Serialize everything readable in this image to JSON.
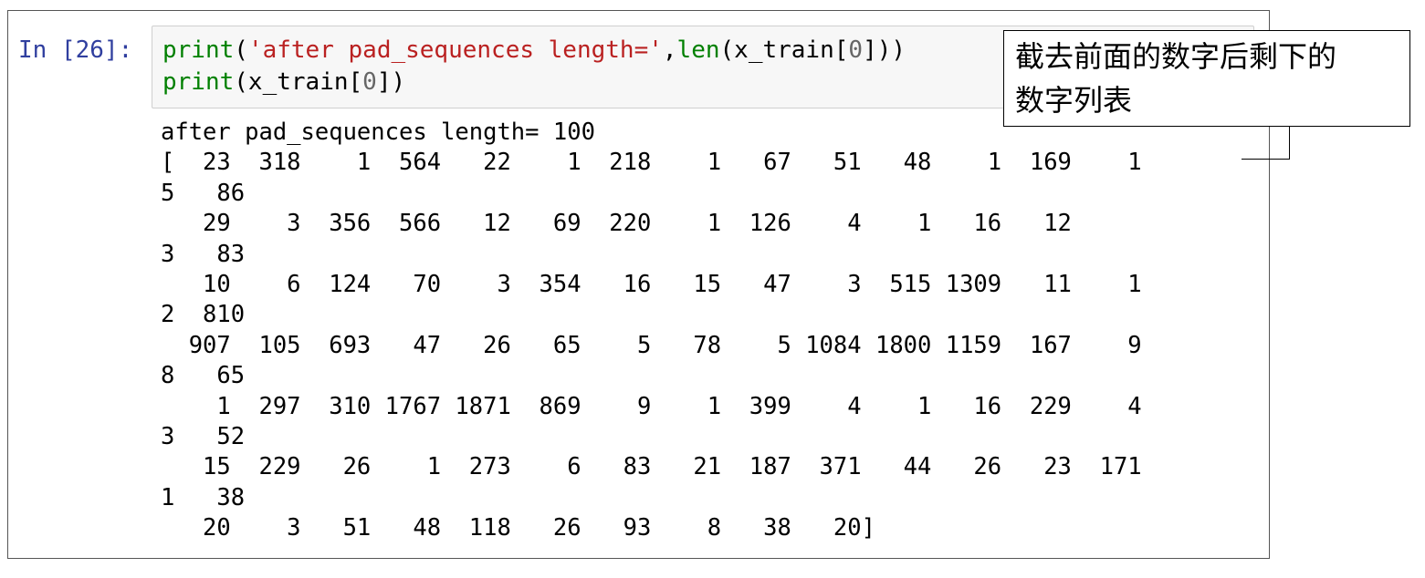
{
  "cell": {
    "prompt": "In [26]:",
    "code_lines": [
      {
        "parts": [
          {
            "t": "print",
            "c": "kw"
          },
          {
            "t": "(",
            "c": "op"
          },
          {
            "t": "'after pad_sequences length='",
            "c": "str"
          },
          {
            "t": ",",
            "c": "op"
          },
          {
            "t": "len",
            "c": "kw"
          },
          {
            "t": "(x_train[",
            "c": "op"
          },
          {
            "t": "0",
            "c": "num"
          },
          {
            "t": "]))",
            "c": "op"
          }
        ]
      },
      {
        "parts": [
          {
            "t": "print",
            "c": "kw"
          },
          {
            "t": "(x_train[",
            "c": "op"
          },
          {
            "t": "0",
            "c": "num"
          },
          {
            "t": "])",
            "c": "op"
          }
        ]
      }
    ],
    "output_lines": [
      "after pad_sequences length= 100",
      "[  23  318    1  564   22    1  218    1   67   51   48    1  169    1",
      "5   86",
      "   29    3  356  566   12   69  220    1  126    4    1   16   12",
      "3   83",
      "   10    6  124   70    3  354   16   15   47    3  515 1309   11    1",
      "2  810",
      "  907  105  693   47   26   65    5   78    5 1084 1800 1159  167    9",
      "8   65",
      "    1  297  310 1767 1871  869    9    1  399    4    1   16  229    4",
      "3   52",
      "   15  229   26    1  273    6   83   21  187  371   44   26   23  171",
      "1   38",
      "   20    3   51   48  118   26   93    8   38   20]"
    ]
  },
  "annotation": {
    "line1": "截去前面的数字后剩下的",
    "line2": "数字列表"
  },
  "colors": {
    "prompt": "#303f9f",
    "keyword": "#008000",
    "string": "#ba2121",
    "number": "#666666",
    "input_bg": "#f7f7f7"
  }
}
